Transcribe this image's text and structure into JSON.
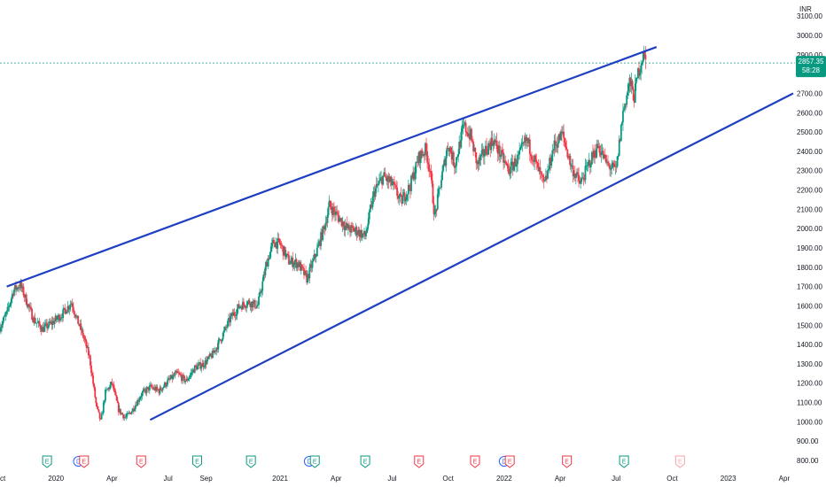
{
  "chart_data": {
    "type": "candlestick",
    "currency": "INR",
    "last_price": "2857.35",
    "countdown": "58:28",
    "y_ticks": [
      800,
      900,
      1000,
      1100,
      1200,
      1300,
      1400,
      1500,
      1600,
      1700,
      1800,
      1900,
      2000,
      2100,
      2200,
      2300,
      2400,
      2500,
      2600,
      2700,
      2800,
      2900,
      3000,
      3100
    ],
    "y_tick_labels": [
      "800.00",
      "900.00",
      "1000.00",
      "1100.00",
      "1200.00",
      "1300.00",
      "1400.00",
      "1500.00",
      "1600.00",
      "1700.00",
      "1800.00",
      "1900.00",
      "2000.00",
      "2100.00",
      "2200.00",
      "2300.00",
      "2400.00",
      "2500.00",
      "2600.00",
      "2700.00",
      "2800.00",
      "2900.00",
      "3000.00",
      "3100.00"
    ],
    "x_ticks": [
      {
        "label": "ct",
        "t": 2019.75
      },
      {
        "label": "2020",
        "t": 2020.0
      },
      {
        "label": "Apr",
        "t": 2020.25
      },
      {
        "label": "Jul",
        "t": 2020.5
      },
      {
        "label": "Sep",
        "t": 2020.67
      },
      {
        "label": "2021",
        "t": 2021.0
      },
      {
        "label": "Apr",
        "t": 2021.25
      },
      {
        "label": "Jul",
        "t": 2021.5
      },
      {
        "label": "Oct",
        "t": 2021.75
      },
      {
        "label": "2022",
        "t": 2022.0
      },
      {
        "label": "Apr",
        "t": 2022.25
      },
      {
        "label": "Jul",
        "t": 2022.5
      },
      {
        "label": "Oct",
        "t": 2022.75
      },
      {
        "label": "2023",
        "t": 2023.0
      },
      {
        "label": "Apr",
        "t": 2023.25
      }
    ],
    "x_range": [
      2019.75,
      2023.29
    ],
    "y_range": [
      800,
      3150
    ],
    "price_path": [
      [
        2019.75,
        1490
      ],
      [
        2019.78,
        1560
      ],
      [
        2019.81,
        1680
      ],
      [
        2019.84,
        1710
      ],
      [
        2019.87,
        1620
      ],
      [
        2019.9,
        1530
      ],
      [
        2019.94,
        1480
      ],
      [
        2019.98,
        1510
      ],
      [
        2020.03,
        1560
      ],
      [
        2020.07,
        1620
      ],
      [
        2020.09,
        1540
      ],
      [
        2020.12,
        1450
      ],
      [
        2020.15,
        1330
      ],
      [
        2020.18,
        1080
      ],
      [
        2020.2,
        1000
      ],
      [
        2020.22,
        1150
      ],
      [
        2020.25,
        1200
      ],
      [
        2020.28,
        1060
      ],
      [
        2020.31,
        1020
      ],
      [
        2020.34,
        1060
      ],
      [
        2020.38,
        1140
      ],
      [
        2020.42,
        1180
      ],
      [
        2020.46,
        1160
      ],
      [
        2020.5,
        1210
      ],
      [
        2020.54,
        1250
      ],
      [
        2020.58,
        1210
      ],
      [
        2020.62,
        1280
      ],
      [
        2020.66,
        1300
      ],
      [
        2020.7,
        1350
      ],
      [
        2020.74,
        1440
      ],
      [
        2020.78,
        1540
      ],
      [
        2020.82,
        1600
      ],
      [
        2020.86,
        1620
      ],
      [
        2020.9,
        1600
      ],
      [
        2020.94,
        1820
      ],
      [
        2020.97,
        1930
      ],
      [
        2021.0,
        1920
      ],
      [
        2021.04,
        1830
      ],
      [
        2021.08,
        1820
      ],
      [
        2021.12,
        1740
      ],
      [
        2021.16,
        1870
      ],
      [
        2021.2,
        2020
      ],
      [
        2021.22,
        2120
      ],
      [
        2021.26,
        2060
      ],
      [
        2021.3,
        2000
      ],
      [
        2021.34,
        1990
      ],
      [
        2021.38,
        1960
      ],
      [
        2021.42,
        2190
      ],
      [
        2021.46,
        2270
      ],
      [
        2021.5,
        2230
      ],
      [
        2021.54,
        2140
      ],
      [
        2021.58,
        2220
      ],
      [
        2021.62,
        2370
      ],
      [
        2021.65,
        2410
      ],
      [
        2021.67,
        2300
      ],
      [
        2021.69,
        2060
      ],
      [
        2021.72,
        2260
      ],
      [
        2021.75,
        2440
      ],
      [
        2021.78,
        2330
      ],
      [
        2021.82,
        2530
      ],
      [
        2021.85,
        2480
      ],
      [
        2021.88,
        2330
      ],
      [
        2021.92,
        2410
      ],
      [
        2021.95,
        2460
      ],
      [
        2021.99,
        2370
      ],
      [
        2022.02,
        2300
      ],
      [
        2022.06,
        2360
      ],
      [
        2022.1,
        2460
      ],
      [
        2022.14,
        2340
      ],
      [
        2022.18,
        2220
      ],
      [
        2022.22,
        2420
      ],
      [
        2022.26,
        2490
      ],
      [
        2022.3,
        2320
      ],
      [
        2022.34,
        2230
      ],
      [
        2022.38,
        2340
      ],
      [
        2022.42,
        2430
      ],
      [
        2022.46,
        2330
      ],
      [
        2022.5,
        2300
      ],
      [
        2022.53,
        2600
      ],
      [
        2022.56,
        2760
      ],
      [
        2022.58,
        2680
      ],
      [
        2022.6,
        2820
      ],
      [
        2022.62,
        2900
      ],
      [
        2022.635,
        2857
      ]
    ]
  },
  "upper_trendline": {
    "from": [
      2019.78,
      1700
    ],
    "to": [
      2022.68,
      2940
    ]
  },
  "lower_trendline": {
    "from": [
      2020.42,
      1010
    ],
    "to": [
      2023.29,
      2700
    ]
  },
  "event_markers": [
    {
      "t": 2019.96,
      "letter": "E",
      "color": "#089981"
    },
    {
      "t": 2020.1,
      "letter": "D",
      "color": "#2962ff"
    },
    {
      "t": 2020.125,
      "letter": "E",
      "color": "#f23645"
    },
    {
      "t": 2020.38,
      "letter": "E",
      "color": "#f23645"
    },
    {
      "t": 2020.63,
      "letter": "E",
      "color": "#089981"
    },
    {
      "t": 2020.87,
      "letter": "E",
      "color": "#089981"
    },
    {
      "t": 2021.13,
      "letter": "D",
      "color": "#2962ff"
    },
    {
      "t": 2021.155,
      "letter": "E",
      "color": "#089981"
    },
    {
      "t": 2021.38,
      "letter": "E",
      "color": "#089981"
    },
    {
      "t": 2021.62,
      "letter": "E",
      "color": "#f23645"
    },
    {
      "t": 2021.87,
      "letter": "E",
      "color": "#f23645"
    },
    {
      "t": 2022.0,
      "letter": "D",
      "color": "#2962ff"
    },
    {
      "t": 2022.025,
      "letter": "E",
      "color": "#f23645"
    },
    {
      "t": 2022.28,
      "letter": "E",
      "color": "#f23645"
    },
    {
      "t": 2022.535,
      "letter": "E",
      "color": "#089981"
    },
    {
      "t": 2022.785,
      "letter": "E",
      "color": "#f5a3ab"
    }
  ],
  "colors": {
    "up": "#089981",
    "down": "#f23645",
    "trendline": "#1e3fc2",
    "price_line": "#089981",
    "price_box": "#089981"
  }
}
